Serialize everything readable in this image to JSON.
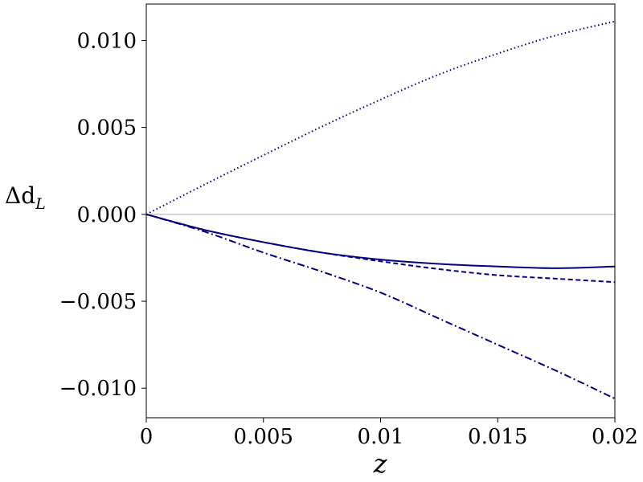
{
  "chart_data": {
    "type": "line",
    "xlabel": "z",
    "ylabel_prefix": "Δd",
    "ylabel_sub": "L",
    "xlim": [
      0,
      0.02
    ],
    "ylim": [
      -0.0117,
      0.0121
    ],
    "x_ticks": [
      {
        "value": 0,
        "label": "0"
      },
      {
        "value": 0.005,
        "label": "0.005"
      },
      {
        "value": 0.01,
        "label": "0.01"
      },
      {
        "value": 0.015,
        "label": "0.015"
      },
      {
        "value": 0.02,
        "label": "0.02"
      }
    ],
    "y_ticks": [
      {
        "value": 0.01,
        "label": "0.010"
      },
      {
        "value": 0.005,
        "label": "0.005"
      },
      {
        "value": 0,
        "label": "0.000"
      },
      {
        "value": -0.005,
        "label": "−0.005"
      },
      {
        "value": -0.01,
        "label": "−0.010"
      }
    ],
    "reference_line": {
      "y": 0,
      "color": "#cccccc"
    },
    "line_color": "#000080",
    "grid": false,
    "x": [
      0,
      0.0025,
      0.005,
      0.0075,
      0.01,
      0.0125,
      0.015,
      0.0175,
      0.02
    ],
    "series": [
      {
        "style": "dotted",
        "values": [
          0,
          0.00172,
          0.0034,
          0.00505,
          0.0066,
          0.00805,
          0.00925,
          0.0103,
          0.0111
        ]
      },
      {
        "style": "solid",
        "values": [
          0,
          -0.0009,
          -0.0016,
          -0.0022,
          -0.0026,
          -0.00285,
          -0.003,
          -0.0031,
          -0.003
        ]
      },
      {
        "style": "dashed",
        "values": [
          0,
          -0.0009,
          -0.0016,
          -0.0022,
          -0.0027,
          -0.00315,
          -0.0035,
          -0.0037,
          -0.0039
        ]
      },
      {
        "style": "dashdot",
        "values": [
          0,
          -0.001,
          -0.0022,
          -0.0033,
          -0.0045,
          -0.006,
          -0.0075,
          -0.009,
          -0.0106
        ]
      }
    ]
  }
}
